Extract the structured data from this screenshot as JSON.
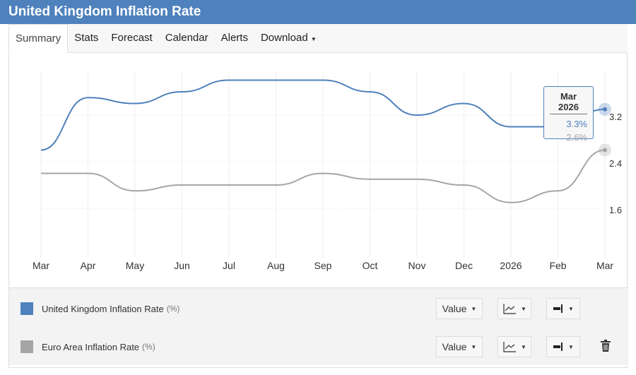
{
  "header": {
    "title": "United Kingdom Inflation Rate"
  },
  "tabs": [
    {
      "label": "Summary"
    },
    {
      "label": "Stats"
    },
    {
      "label": "Forecast"
    },
    {
      "label": "Calendar"
    },
    {
      "label": "Alerts"
    },
    {
      "label": "Download"
    }
  ],
  "tooltip": {
    "date": "Mar 2026",
    "uk": "3.3%",
    "ea": "2.6%"
  },
  "legend": [
    {
      "name": "United Kingdom Inflation Rate",
      "unit": "(%)",
      "color": "#4f81bd",
      "value_label": "Value"
    },
    {
      "name": "Euro Area Inflation Rate",
      "unit": "(%)",
      "color": "#a5a5a5",
      "value_label": "Value"
    }
  ],
  "chart_data": {
    "type": "line",
    "categories": [
      "Mar",
      "Apr",
      "May",
      "Jun",
      "Jul",
      "Aug",
      "Sep",
      "Oct",
      "Nov",
      "Dec",
      "2026",
      "Feb",
      "Mar"
    ],
    "series": [
      {
        "name": "United Kingdom Inflation Rate",
        "color": "#4f81bd",
        "values": [
          2.6,
          3.5,
          3.4,
          3.6,
          3.8,
          3.8,
          3.8,
          3.6,
          3.2,
          3.4,
          3.0,
          3.0,
          3.3
        ]
      },
      {
        "name": "Euro Area Inflation Rate",
        "color": "#a5a5a5",
        "values": [
          2.2,
          2.2,
          1.9,
          2.0,
          2.0,
          2.0,
          2.2,
          2.1,
          2.1,
          2.0,
          1.7,
          1.9,
          2.6
        ]
      }
    ],
    "yticks": [
      "1.6",
      "2.4",
      "3.2"
    ],
    "ylim": [
      0.8,
      4.0
    ],
    "grid": true,
    "legend_position": "bottom"
  }
}
